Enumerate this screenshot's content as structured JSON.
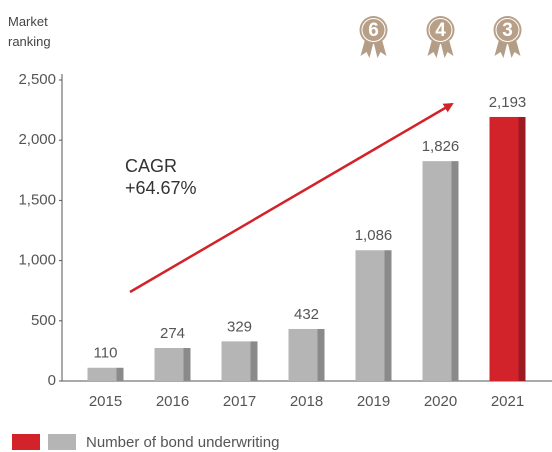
{
  "chart_data": {
    "type": "bar",
    "ranking_label": "Market ranking",
    "categories": [
      "2015",
      "2016",
      "2017",
      "2018",
      "2019",
      "2020",
      "2021"
    ],
    "series": [
      {
        "name": "Number of bond underwriting",
        "values": [
          110,
          274,
          329,
          432,
          1086,
          1826,
          2193
        ],
        "value_labels": [
          "110",
          "274",
          "329",
          "432",
          "1,086",
          "1,826",
          "2,193"
        ],
        "colors": [
          "#b5b5b6",
          "#b5b5b6",
          "#b5b5b6",
          "#b5b5b6",
          "#b5b5b6",
          "#b5b5b6",
          "#d2232a"
        ]
      }
    ],
    "rankings": [
      {
        "category": "2019",
        "rank": 6
      },
      {
        "category": "2020",
        "rank": 4
      },
      {
        "category": "2021",
        "rank": 3
      }
    ],
    "annotation_title": "CAGR",
    "annotation_value": "+64.67%",
    "ylim": [
      0,
      2500
    ],
    "yticks": [
      0,
      500,
      {
        "value": 1000,
        "label": "1,000"
      },
      {
        "value": 1500,
        "label": "1,500"
      },
      {
        "value": 2000,
        "label": "2,000"
      },
      {
        "value": 2500,
        "label": "2,500"
      }
    ],
    "grid": false
  }
}
